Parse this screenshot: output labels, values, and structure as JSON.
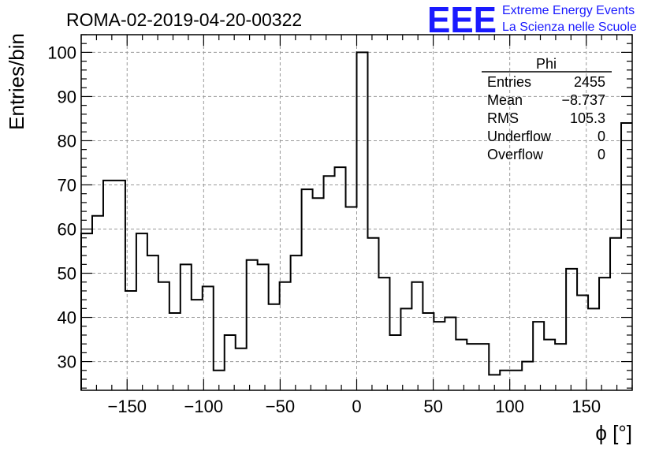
{
  "chart_data": {
    "type": "histogram",
    "title": "ROMA-02-2019-04-20-00322",
    "xlabel": "ϕ [°]",
    "ylabel": "Entries/bin",
    "xlim": [
      -180,
      180
    ],
    "ylim": [
      23.5,
      104
    ],
    "x_ticks": [
      -150,
      -100,
      -50,
      0,
      50,
      100,
      150
    ],
    "y_ticks": [
      30,
      40,
      50,
      60,
      70,
      80,
      90,
      100
    ],
    "grid": true,
    "bin_width": 7.2,
    "bin_low_edges": [
      -180,
      -172.8,
      -165.6,
      -158.4,
      -151.2,
      -144,
      -136.8,
      -129.6,
      -122.4,
      -115.2,
      -108,
      -100.8,
      -93.6,
      -86.4,
      -79.2,
      -72,
      -64.8,
      -57.6,
      -50.4,
      -43.2,
      -36,
      -28.8,
      -21.6,
      -14.4,
      -7.2,
      0,
      7.2,
      14.4,
      21.6,
      28.8,
      36,
      43.2,
      50.4,
      57.6,
      64.8,
      72,
      79.2,
      86.4,
      93.6,
      100.8,
      108,
      115.2,
      122.4,
      129.6,
      136.8,
      144,
      151.2,
      158.4,
      165.6,
      172.8
    ],
    "values": [
      59,
      63,
      71,
      71,
      46,
      59,
      54,
      48,
      41,
      52,
      44,
      47,
      28,
      36,
      33,
      53,
      52,
      43,
      48,
      54,
      69,
      67,
      72,
      74,
      65,
      100,
      58,
      49,
      36,
      42,
      48,
      41,
      39,
      40,
      35,
      34,
      34,
      27,
      28,
      28,
      30,
      39,
      35,
      34,
      51,
      45,
      42,
      49,
      58,
      84
    ],
    "line_color": "#000000",
    "grid_color": "#999999"
  },
  "stats_box": {
    "header": "Phi",
    "rows": [
      {
        "label": "Entries",
        "value": "2455"
      },
      {
        "label": "Mean",
        "value": "−8.737"
      },
      {
        "label": "RMS",
        "value": "105.3"
      },
      {
        "label": "Underflow",
        "value": "0"
      },
      {
        "label": "Overflow",
        "value": "0"
      }
    ]
  },
  "logo": {
    "mark": "EEE",
    "line1": "Extreme Energy Events",
    "line2": "La Scienza nelle Scuole",
    "color": "#1a1aff"
  }
}
